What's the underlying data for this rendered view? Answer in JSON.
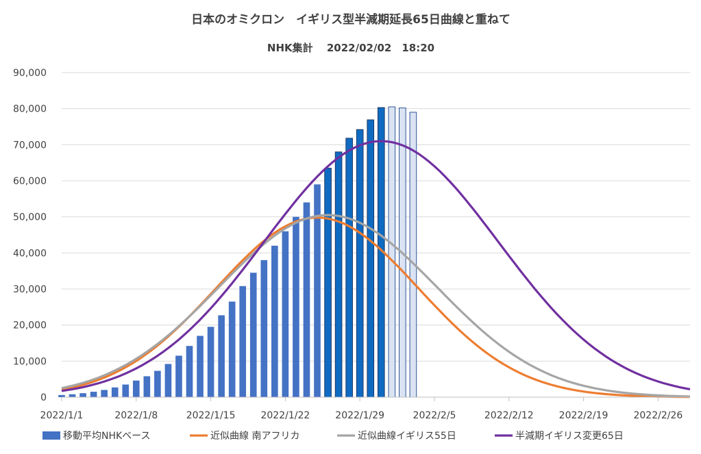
{
  "chart_data": {
    "type": "bar",
    "title": "日本のオミクロン　イギリス型半減期延長65日曲線と重ねて",
    "subtitle": "NHK集計　 2022/02/02　18:20",
    "y_ticks": [
      "0",
      "10,000",
      "20,000",
      "30,000",
      "40,000",
      "50,000",
      "60,000",
      "70,000",
      "80,000",
      "90,000"
    ],
    "ylim": [
      0,
      90000
    ],
    "x_ticks": [
      "2022/1/1",
      "2022/1/8",
      "2022/1/15",
      "2022/1/22",
      "2022/1/29",
      "2022/2/5",
      "2022/2/12",
      "2022/2/19",
      "2022/2/26"
    ],
    "x_start": "2022/1/1",
    "x_end": "2022/3/1",
    "grid": true,
    "legend_position": "bottom",
    "bar_series": {
      "name": "移動平均NHKベース",
      "values": [
        600,
        800,
        1100,
        1500,
        2000,
        2700,
        3500,
        4600,
        5800,
        7300,
        9200,
        11500,
        14200,
        17000,
        19500,
        22700,
        26500,
        30800,
        34500,
        38000,
        42000,
        46000,
        50000,
        54000,
        59000,
        63500,
        68000,
        71800,
        74200,
        76900,
        80300,
        80500,
        80200,
        79000
      ],
      "colors": [
        "#4472C4",
        "#0F6BC2",
        "#DAE3F3"
      ]
    },
    "line_series": [
      {
        "name": "近似曲線 南アフリカ",
        "color": "#ED7D31",
        "peak": 49800,
        "peak_day": 24,
        "sigma": 9.5
      },
      {
        "name": "近似曲線イギリス55日",
        "color": "#A5A5A5",
        "peak": 50500,
        "peak_day": 25,
        "sigma": 10.2
      },
      {
        "name": "半減期イギリス変更65日",
        "color": "#7030A0",
        "peak": 71000,
        "peak_day": 30,
        "sigma": 11.0
      }
    ]
  }
}
